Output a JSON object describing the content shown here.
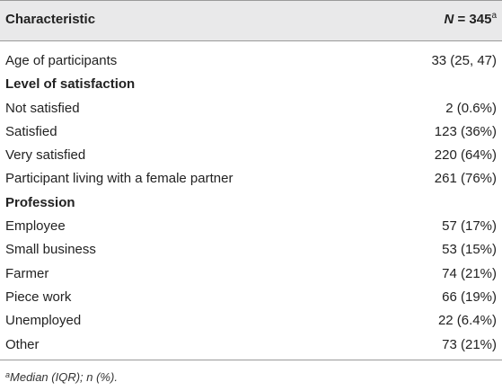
{
  "header": {
    "characteristic": "Characteristic",
    "n_symbol": "N",
    "n_value": " = 345",
    "n_superscript": "a"
  },
  "rows": [
    {
      "label": "Age of participants",
      "value": "33 (25, 47)",
      "section": false
    },
    {
      "label": "Level of satisfaction",
      "value": "",
      "section": true
    },
    {
      "label": "Not satisfied",
      "value": "2 (0.6%)",
      "section": false
    },
    {
      "label": "Satisfied",
      "value": "123 (36%)",
      "section": false
    },
    {
      "label": "Very satisfied",
      "value": "220 (64%)",
      "section": false
    },
    {
      "label": "Participant living with a female partner",
      "value": "261 (76%)",
      "section": false
    },
    {
      "label": "Profession",
      "value": "",
      "section": true
    },
    {
      "label": "Employee",
      "value": "57 (17%)",
      "section": false
    },
    {
      "label": "Small business",
      "value": "53 (15%)",
      "section": false
    },
    {
      "label": "Farmer",
      "value": "74 (21%)",
      "section": false
    },
    {
      "label": "Piece work",
      "value": "66 (19%)",
      "section": false
    },
    {
      "label": "Unemployed",
      "value": "22 (6.4%)",
      "section": false
    },
    {
      "label": "Other",
      "value": "73 (21%)",
      "section": false
    }
  ],
  "footnote": {
    "marker": "a",
    "text": "Median (IQR); n (%)."
  }
}
